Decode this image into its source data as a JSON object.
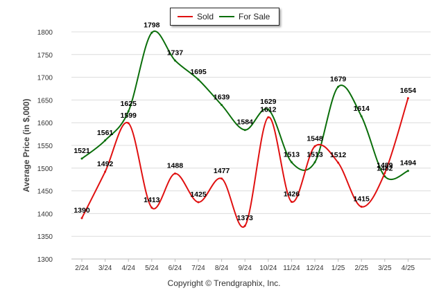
{
  "chart_data": {
    "type": "line",
    "ylabel": "Average Price (in $,000)",
    "xlabel": "",
    "categories": [
      "2/24",
      "3/24",
      "4/24",
      "5/24",
      "6/24",
      "7/24",
      "8/24",
      "9/24",
      "10/24",
      "11/24",
      "12/24",
      "1/25",
      "2/25",
      "3/25",
      "4/25"
    ],
    "ylim": [
      1300,
      1800
    ],
    "yticks": [
      "1300",
      "1350",
      "1400",
      "1450",
      "1500",
      "1550",
      "1600",
      "1650",
      "1700",
      "1750",
      "1800"
    ],
    "grid": true,
    "legend_position": "top-center",
    "series": [
      {
        "name": "Sold",
        "color": "#e01010",
        "values": [
          1390,
          1492,
          1599,
          1413,
          1488,
          1425,
          1477,
          1373,
          1612,
          1426,
          1548,
          1512,
          1415,
          1489,
          1654
        ]
      },
      {
        "name": "For Sale",
        "color": "#0a6e0a",
        "values": [
          1521,
          1561,
          1625,
          1798,
          1737,
          1695,
          1639,
          1584,
          1629,
          1513,
          1513,
          1679,
          1614,
          1482,
          1494
        ]
      }
    ]
  },
  "footer": {
    "copyright": "Copyright © Trendgraphix, Inc."
  }
}
